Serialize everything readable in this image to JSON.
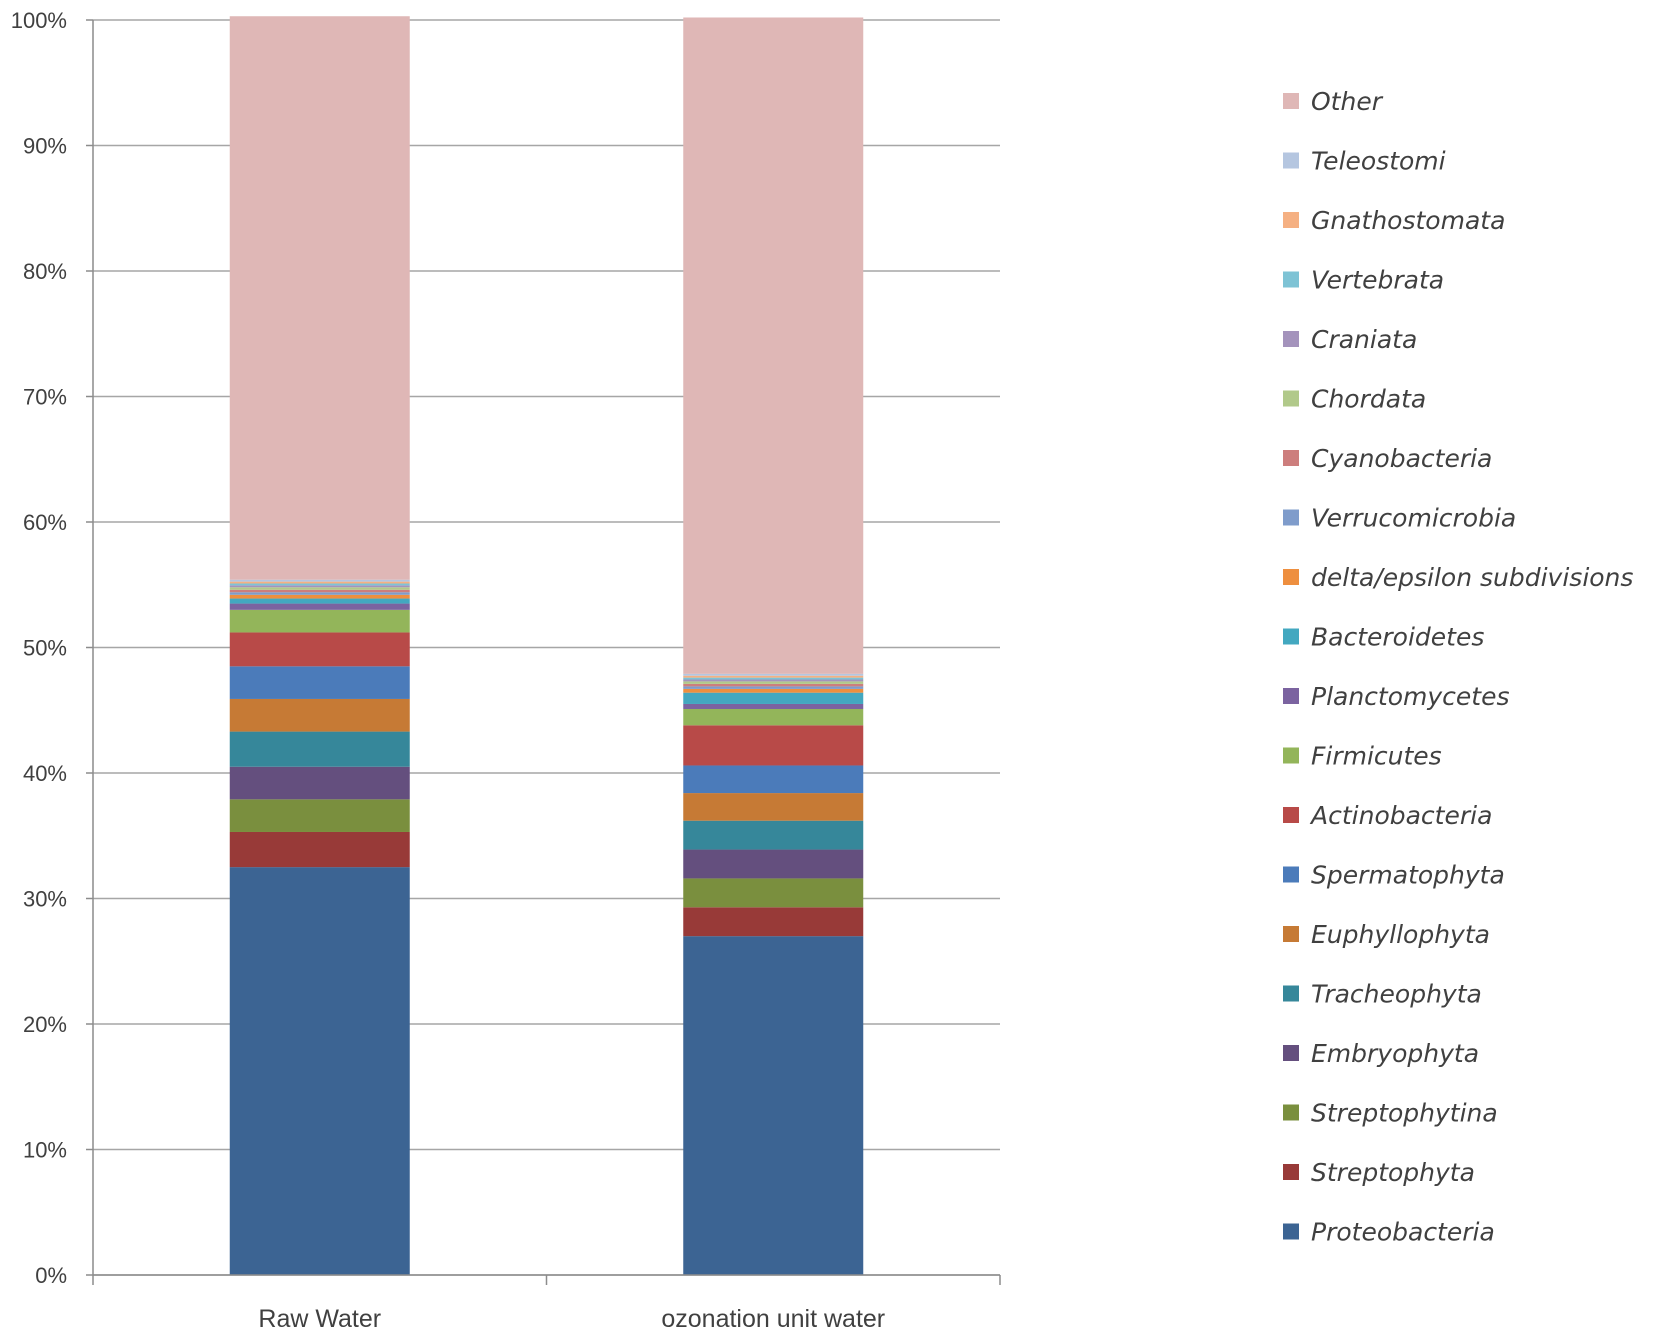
{
  "chart_data": {
    "type": "bar",
    "stacked": "percent",
    "title": "",
    "xlabel": "",
    "ylabel": "",
    "ylim": [
      0,
      100
    ],
    "y_ticks": [
      "0%",
      "10%",
      "20%",
      "30%",
      "40%",
      "50%",
      "60%",
      "70%",
      "80%",
      "90%",
      "100%"
    ],
    "categories": [
      "Raw Water",
      "ozonation unit water"
    ],
    "legend_position": "right",
    "series": [
      {
        "name": "Proteobacteria",
        "color": "#3C6493",
        "values": [
          32.5,
          27.0
        ]
      },
      {
        "name": "Streptophyta",
        "color": "#983A38",
        "values": [
          2.8,
          2.3
        ]
      },
      {
        "name": "Streptophytina",
        "color": "#7A8F3E",
        "values": [
          2.6,
          2.3
        ]
      },
      {
        "name": "Embryophyta",
        "color": "#644F7E",
        "values": [
          2.6,
          2.3
        ]
      },
      {
        "name": "Tracheophyta",
        "color": "#36879A",
        "values": [
          2.8,
          2.3
        ]
      },
      {
        "name": "Euphyllophyta",
        "color": "#C67A35",
        "values": [
          2.6,
          2.2
        ]
      },
      {
        "name": "Spermatophyta",
        "color": "#4B7BBA",
        "values": [
          2.6,
          2.2
        ]
      },
      {
        "name": "Actinobacteria",
        "color": "#B84A48",
        "values": [
          2.7,
          3.2
        ]
      },
      {
        "name": "Firmicutes",
        "color": "#93B55A",
        "values": [
          1.8,
          1.3
        ]
      },
      {
        "name": "Planctomycetes",
        "color": "#7B63A0",
        "values": [
          0.5,
          0.4
        ]
      },
      {
        "name": "Bacteroidetes",
        "color": "#43A8C0",
        "values": [
          0.4,
          0.9
        ]
      },
      {
        "name": "delta/epsilon subdivisions",
        "color": "#EE8F3F",
        "values": [
          0.3,
          0.3
        ]
      },
      {
        "name": "Verrucomicrobia",
        "color": "#7F9CCB",
        "values": [
          0.2,
          0.2
        ]
      },
      {
        "name": "Cyanobacteria",
        "color": "#CD7E7D",
        "values": [
          0.2,
          0.2
        ]
      },
      {
        "name": "Chordata",
        "color": "#B1C98A",
        "values": [
          0.2,
          0.2
        ]
      },
      {
        "name": "Craniata",
        "color": "#A493BC",
        "values": [
          0.15,
          0.15
        ]
      },
      {
        "name": "Vertebrata",
        "color": "#7EC3D5",
        "values": [
          0.15,
          0.15
        ]
      },
      {
        "name": "Gnathostomata",
        "color": "#F5B082",
        "values": [
          0.15,
          0.15
        ]
      },
      {
        "name": "Teleostomi",
        "color": "#B5C6E0",
        "values": [
          0.15,
          0.15
        ]
      },
      {
        "name": "Other",
        "color": "#DFB7B6",
        "values": [
          44.9,
          52.3
        ]
      }
    ]
  }
}
